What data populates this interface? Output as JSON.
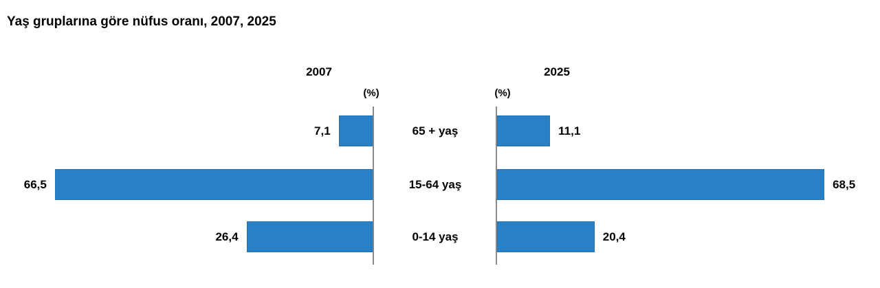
{
  "chart_data": {
    "type": "bar",
    "orientation": "horizontal-mirrored-back-to-back",
    "title": "Yaş gruplarına göre nüfus oranı, 2007, 2025",
    "unit_label": "(%)",
    "categories": [
      "65 + yaş",
      "15-64 yaş",
      "0-14 yaş"
    ],
    "series": [
      {
        "name": "2007",
        "side": "left",
        "values": [
          7.1,
          66.5,
          26.4
        ],
        "value_labels": [
          "7,1",
          "66,5",
          "26,4"
        ]
      },
      {
        "name": "2025",
        "side": "right",
        "values": [
          11.1,
          68.5,
          20.4
        ],
        "value_labels": [
          "11,1",
          "68,5",
          "20,4"
        ]
      }
    ],
    "value_axis_range": [
      0,
      70
    ],
    "gridlines": false,
    "legend": "none",
    "colors": {
      "bar": "#2a80c4",
      "bar_border": "#2373b2",
      "axis": "#8a8a8a",
      "text": "#000000",
      "background": "#ffffff"
    }
  }
}
